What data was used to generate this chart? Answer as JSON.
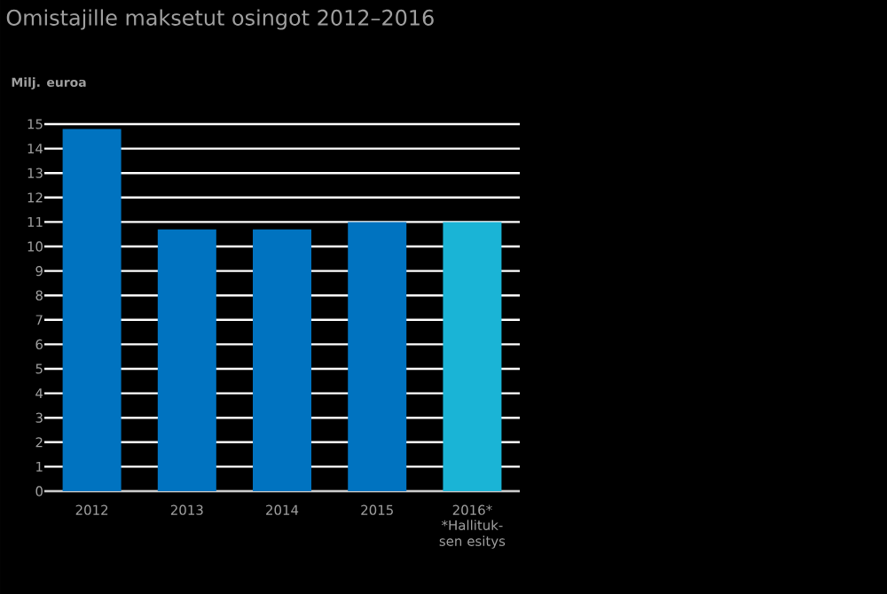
{
  "chart_data": {
    "type": "bar",
    "title": "Omistajille maksetut osingot 2012–2016",
    "ylabel": "Milj. euroa",
    "categories": [
      "2012",
      "2013",
      "2014",
      "2015",
      "2016*"
    ],
    "values": [
      14.8,
      10.7,
      10.7,
      11.0,
      11.0
    ],
    "colors": [
      "#0073c0",
      "#0073c0",
      "#0073c0",
      "#0073c0",
      "#1ab4d6"
    ],
    "ylim": [
      0,
      15
    ],
    "yticks": [
      0,
      1,
      2,
      3,
      4,
      5,
      6,
      7,
      8,
      9,
      10,
      11,
      12,
      13,
      14,
      15
    ],
    "grid": "y",
    "annotations": [
      {
        "text": "*Hallituk- sen esitys",
        "x": "2016*",
        "y": 0
      }
    ]
  }
}
